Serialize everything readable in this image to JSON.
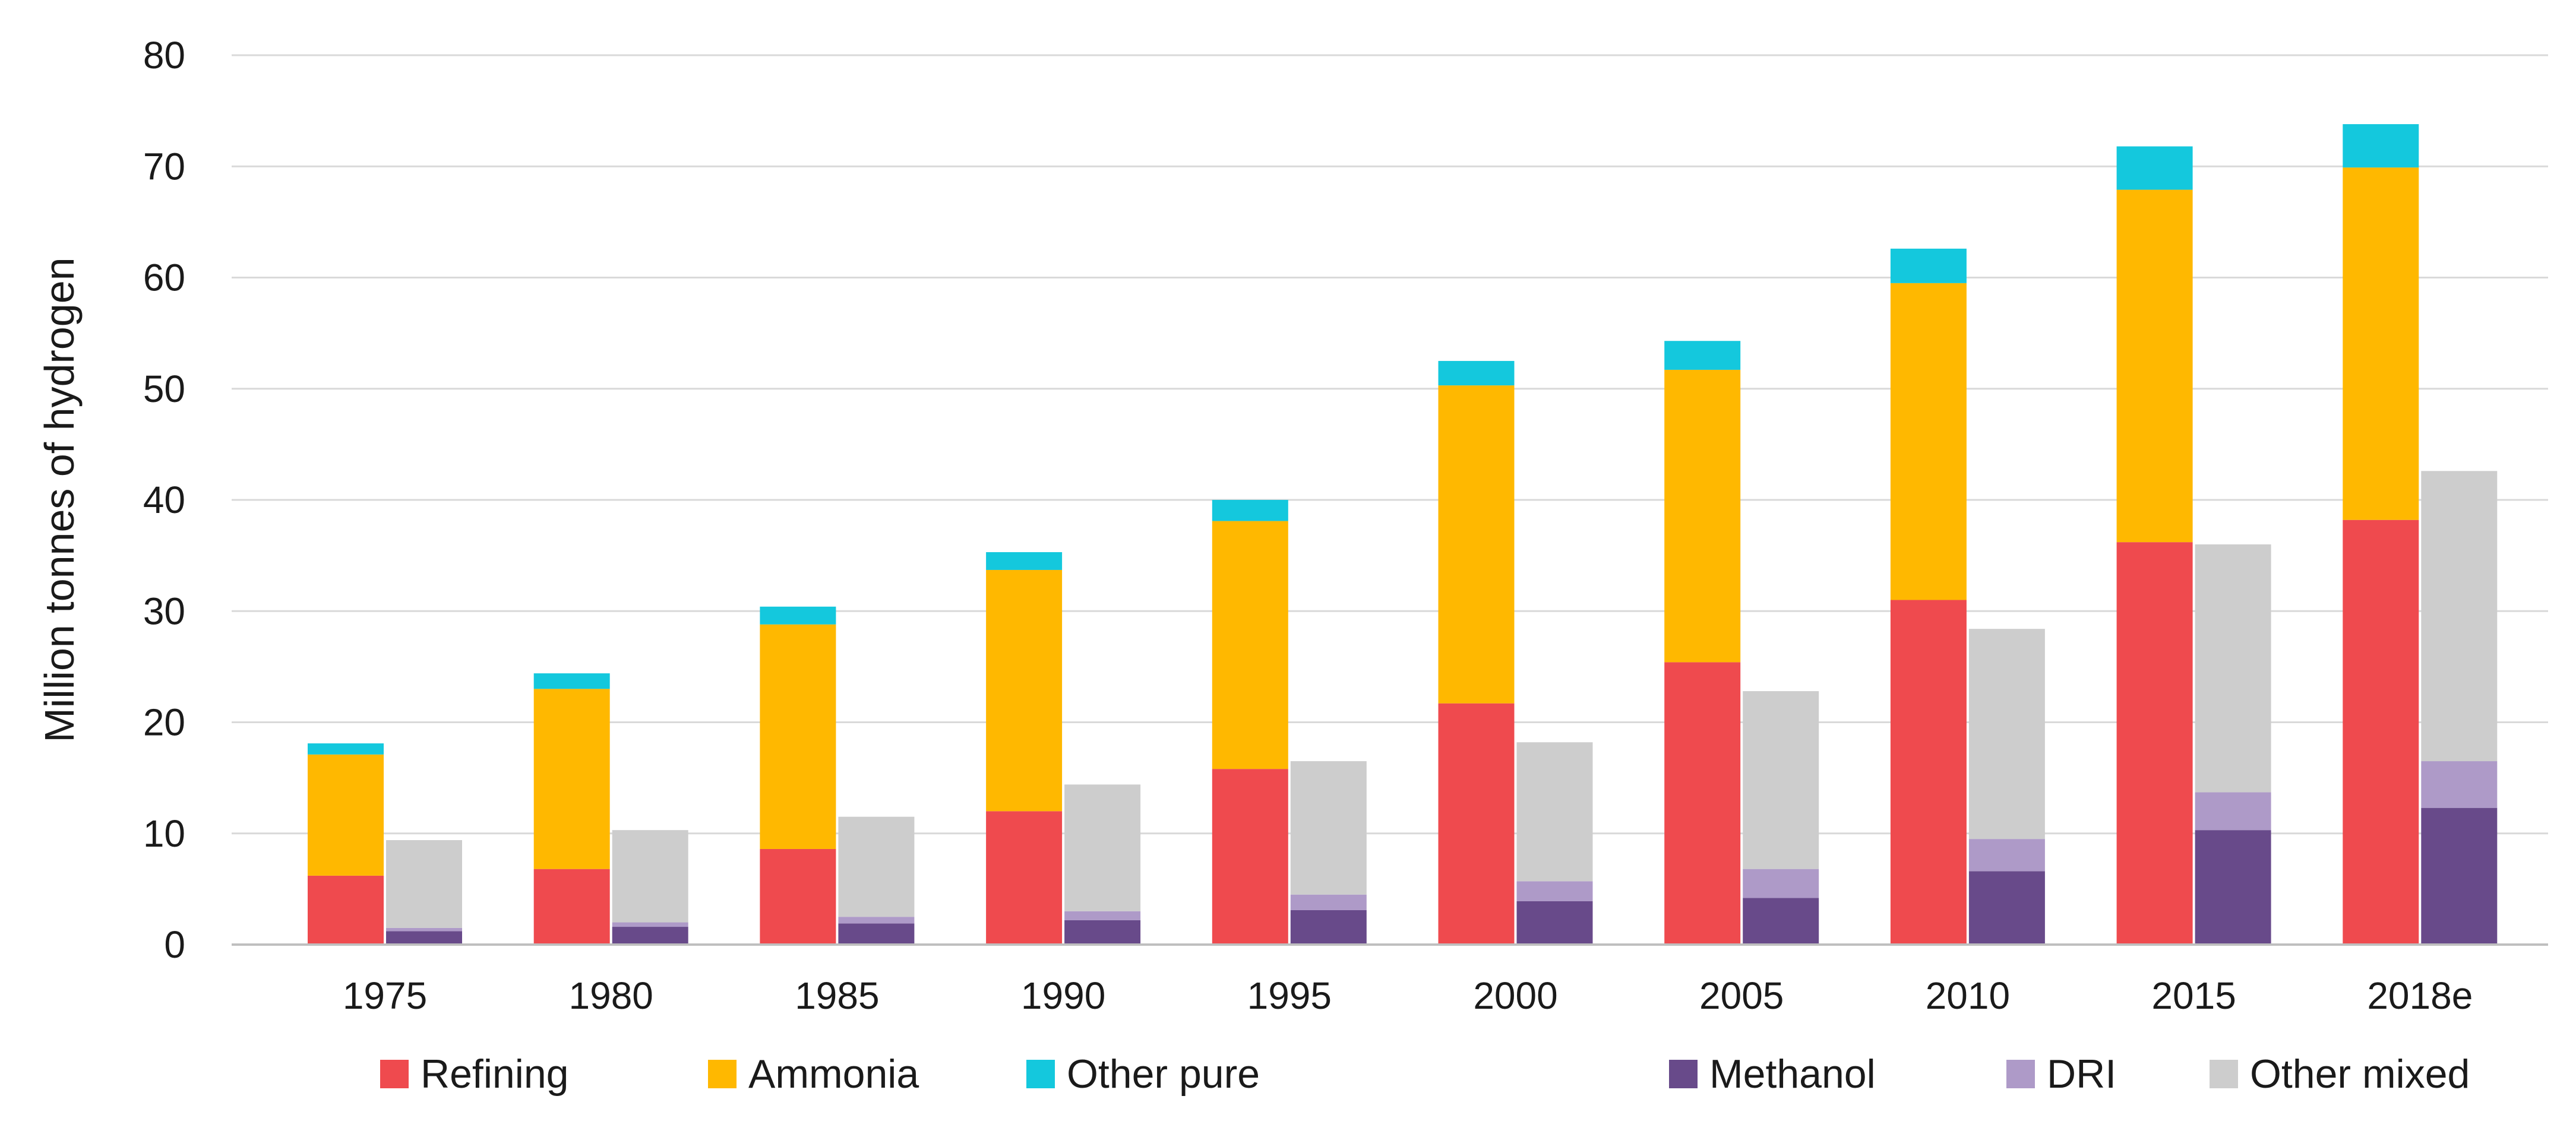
{
  "chart_data": {
    "type": "bar",
    "subtype": "grouped-stacked",
    "title": "",
    "xlabel": "",
    "ylabel": "Million tonnes of hydrogen",
    "ylim": [
      0,
      80
    ],
    "yticks": [
      0,
      10,
      20,
      30,
      40,
      50,
      60,
      70,
      80
    ],
    "grid": true,
    "legend_position": "bottom",
    "categories": [
      "1975",
      "1980",
      "1985",
      "1990",
      "1995",
      "2000",
      "2005",
      "2010",
      "2015",
      "2018e"
    ],
    "stacks": [
      {
        "name": "pure",
        "series": [
          {
            "name": "Refining",
            "color": "#ef4a4e",
            "values": [
              6.2,
              6.8,
              8.6,
              12.0,
              15.8,
              21.7,
              25.4,
              31.0,
              36.2,
              38.2
            ]
          },
          {
            "name": "Ammonia",
            "color": "#ffb800",
            "values": [
              10.9,
              16.2,
              20.2,
              21.7,
              22.3,
              28.6,
              26.3,
              28.5,
              31.7,
              31.7
            ]
          },
          {
            "name": "Other pure",
            "color": "#14c8dd",
            "values": [
              1.0,
              1.4,
              1.6,
              1.6,
              1.9,
              2.2,
              2.6,
              3.1,
              3.9,
              3.9
            ]
          }
        ]
      },
      {
        "name": "mixed",
        "series": [
          {
            "name": "Methanol",
            "color": "#684a8a",
            "values": [
              1.2,
              1.6,
              1.9,
              2.2,
              3.1,
              3.9,
              4.2,
              6.6,
              10.3,
              12.3
            ]
          },
          {
            "name": "DRI",
            "color": "#ae9ac8",
            "values": [
              0.3,
              0.4,
              0.6,
              0.8,
              1.4,
              1.8,
              2.6,
              2.9,
              3.4,
              4.2
            ]
          },
          {
            "name": "Other mixed",
            "color": "#cdcdcd",
            "values": [
              7.9,
              8.3,
              9.0,
              11.4,
              12.0,
              12.5,
              16.0,
              18.9,
              22.3,
              26.1
            ]
          }
        ]
      }
    ],
    "legend": [
      "Refining",
      "Ammonia",
      "Other pure",
      "Methanol",
      "DRI",
      "Other mixed"
    ]
  }
}
